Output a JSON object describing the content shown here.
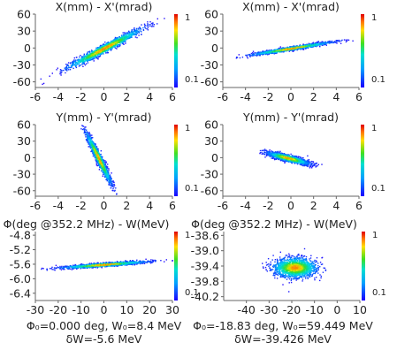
{
  "chart_data": [
    {
      "type": "heatmap",
      "title": "X(mm) - X'(mrad)",
      "xlim": [
        -6,
        6
      ],
      "ylim": [
        -70,
        60
      ],
      "xticks": [
        -6,
        -4,
        -2,
        0,
        2,
        4,
        6
      ],
      "yticks": [
        -60,
        -30,
        0,
        30,
        60
      ],
      "xtick_labels": [
        "-6",
        "-4",
        "-2",
        "0",
        "2",
        "4",
        "6"
      ],
      "ytick_labels": [
        "-60",
        "-30",
        "0",
        "30",
        "60"
      ],
      "colorbar_labels": [
        "1",
        "0.1"
      ],
      "distribution": {
        "center": [
          0,
          0
        ],
        "sigma_major_x": 1.6,
        "slope": 10.5,
        "sigma_minor_y": 4.0
      }
    },
    {
      "type": "heatmap",
      "title": "X(mm) - X'(mrad)",
      "xlim": [
        -6,
        6
      ],
      "ylim": [
        -70,
        60
      ],
      "xticks": [
        -6,
        -4,
        -2,
        0,
        2,
        4,
        6
      ],
      "yticks": [
        -60,
        -30,
        0,
        30,
        60
      ],
      "xtick_labels": [
        "-6",
        "-4",
        "-2",
        "0",
        "2",
        "4",
        "6"
      ],
      "ytick_labels": [
        "-60",
        "-30",
        "0",
        "30",
        "60"
      ],
      "colorbar_labels": [
        "1",
        "0.1"
      ],
      "distribution": {
        "center": [
          0,
          0
        ],
        "sigma_major_x": 1.7,
        "slope": 3.2,
        "sigma_minor_y": 1.6
      }
    },
    {
      "type": "heatmap",
      "title": "Y(mm) - Y'(mrad)",
      "xlim": [
        -6,
        6
      ],
      "ylim": [
        -70,
        60
      ],
      "xticks": [
        -6,
        -4,
        -2,
        0,
        2,
        4,
        6
      ],
      "yticks": [
        -60,
        -30,
        0,
        30,
        60
      ],
      "xtick_labels": [
        "-6",
        "-4",
        "-2",
        "0",
        "2",
        "4",
        "6"
      ],
      "ytick_labels": [
        "-60",
        "-30",
        "0",
        "30",
        "60"
      ],
      "colorbar_labels": [
        "1",
        "0.1"
      ],
      "distribution": {
        "center": [
          -0.5,
          0
        ],
        "sigma_major_x": 0.55,
        "slope": -40,
        "sigma_minor_y": 6
      }
    },
    {
      "type": "heatmap",
      "title": "Y(mm) - Y'(mrad)",
      "xlim": [
        -6,
        6
      ],
      "ylim": [
        -70,
        60
      ],
      "xticks": [
        -6,
        -4,
        -2,
        0,
        2,
        4,
        6
      ],
      "yticks": [
        -60,
        -30,
        0,
        30,
        60
      ],
      "xtick_labels": [
        "-6",
        "-4",
        "-2",
        "0",
        "2",
        "4",
        "6"
      ],
      "ytick_labels": [
        "-60",
        "-30",
        "0",
        "30",
        "60"
      ],
      "colorbar_labels": [
        "1",
        "0.1"
      ],
      "distribution": {
        "center": [
          -0.3,
          0
        ],
        "sigma_major_x": 0.9,
        "slope": -5,
        "sigma_minor_y": 3
      }
    },
    {
      "type": "heatmap",
      "title": "Φ(deg @352.2 MHz) - W(MeV)",
      "xlim": [
        -30,
        30
      ],
      "ylim": [
        -6.6,
        -4.7
      ],
      "xticks": [
        -30,
        -20,
        -10,
        0,
        10,
        20,
        30
      ],
      "yticks": [
        -6.4,
        -6.0,
        -5.6,
        -5.2,
        -4.8
      ],
      "xtick_labels": [
        "-30",
        "-20",
        "-10",
        "0",
        "10",
        "20",
        "30"
      ],
      "ytick_labels": [
        "-6.4",
        "-6.0",
        "-5.6",
        "-5.2",
        "-4.8"
      ],
      "colorbar_labels": [
        "1",
        "0.1"
      ],
      "distribution": {
        "center": [
          0,
          -5.6
        ],
        "sigma_major_x": 9,
        "slope": 0.0045,
        "sigma_minor_y": 0.025
      },
      "annotation": [
        "Φ₀=0.000 deg, W₀=8.4 MeV",
        "δW=-5.6 MeV"
      ]
    },
    {
      "type": "heatmap",
      "title": "Φ(deg @352.2 MHz) - W(MeV)",
      "xlim": [
        -50,
        10
      ],
      "ylim": [
        -40.3,
        -38.5
      ],
      "xticks": [
        -40,
        -30,
        -20,
        -10,
        0,
        10
      ],
      "yticks": [
        -40.2,
        -39.8,
        -39.4,
        -39.0,
        -38.6
      ],
      "xtick_labels": [
        "-40",
        "-30",
        "-20",
        "-10",
        "0",
        "10"
      ],
      "ytick_labels": [
        "-40.2",
        "-39.8",
        "-39.4",
        "-39.0",
        "-38.6"
      ],
      "colorbar_labels": [
        "1",
        "0.1"
      ],
      "distribution": {
        "center": [
          -18.8,
          -39.43
        ],
        "sigma_major_x": 4.8,
        "slope": 0,
        "sigma_minor_y": 0.13
      },
      "annotation": [
        "Φ₀=-18.83 deg, W₀=59.449 MeV",
        "δW=-39.426 MeV"
      ]
    }
  ]
}
